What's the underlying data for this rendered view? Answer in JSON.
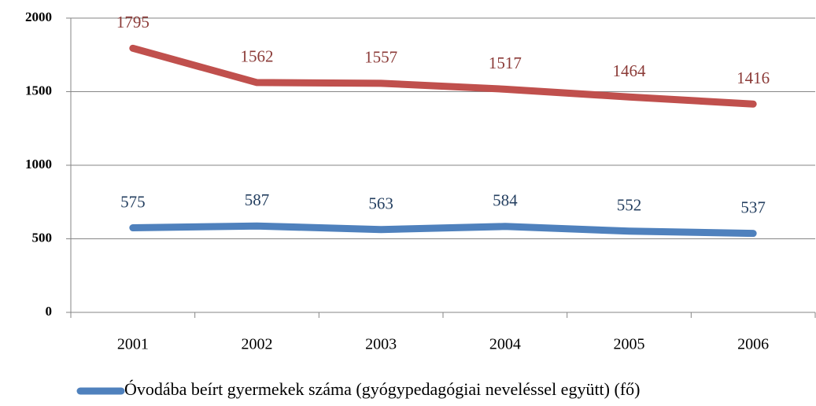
{
  "chart_data": {
    "type": "line",
    "categories": [
      "2001",
      "2002",
      "2003",
      "2004",
      "2005",
      "2006"
    ],
    "series": [
      {
        "color": "#c0504d",
        "label_color": "#8b3a37",
        "values": [
          1795,
          1562,
          1557,
          1517,
          1464,
          1416
        ]
      },
      {
        "name": "Óvodába beírt gyermekek száma (gyógypedagógiai neveléssel együtt) (fő)",
        "color": "#4f81bd",
        "label_color": "#243f60",
        "values": [
          575,
          587,
          563,
          584,
          552,
          537
        ]
      }
    ],
    "ylim": [
      0,
      2000
    ],
    "yticks": [
      0,
      500,
      1000,
      1500,
      2000
    ],
    "grid": true
  }
}
